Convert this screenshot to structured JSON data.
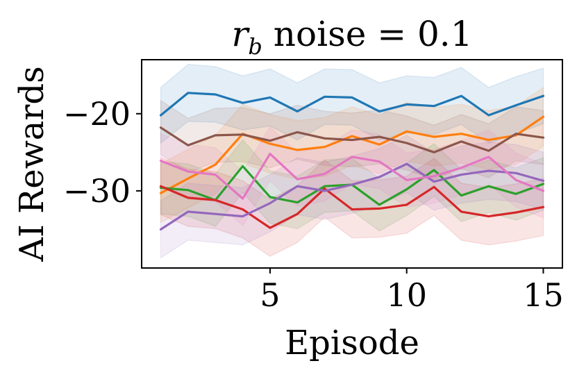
{
  "chart_data": {
    "type": "line",
    "title": {
      "variable": "r",
      "subscript": "b",
      "text": " noise = 0.1"
    },
    "xlabel": "Episode",
    "ylabel": "AI Rewards",
    "xlim": [
      0.3,
      15.7
    ],
    "ylim": [
      -40,
      -13
    ],
    "xticks": [
      5,
      10,
      15
    ],
    "xtick_labels": [
      "5",
      "10",
      "15"
    ],
    "yticks": [
      -20,
      -30
    ],
    "ytick_labels": [
      "−20",
      "−30"
    ],
    "x": [
      1,
      2,
      3,
      4,
      5,
      6,
      7,
      8,
      9,
      10,
      11,
      12,
      13,
      14,
      15
    ],
    "band_opacity": 0.12,
    "series": [
      {
        "name": "series-blue",
        "color": "#1f77b4",
        "values": [
          -20.2,
          -17.3,
          -17.5,
          -18.6,
          -17.9,
          -19.7,
          -17.8,
          -17.9,
          -19.7,
          -18.8,
          -19.0,
          -17.7,
          -20.2,
          -18.9,
          -17.7
        ],
        "upper": [
          -16.6,
          -13.6,
          -13.9,
          -15.1,
          -14.2,
          -16.0,
          -14.2,
          -14.3,
          -16.0,
          -15.1,
          -15.3,
          -14.0,
          -16.6,
          -15.2,
          -14.1
        ],
        "lower": [
          -23.8,
          -21.0,
          -21.1,
          -22.1,
          -21.6,
          -23.4,
          -21.4,
          -21.5,
          -23.4,
          -22.5,
          -22.7,
          -21.4,
          -23.8,
          -22.6,
          -21.3
        ]
      },
      {
        "name": "series-orange",
        "color": "#ff7f0e",
        "values": [
          -30.3,
          -28.4,
          -26.6,
          -22.6,
          -23.9,
          -24.7,
          -24.3,
          -22.9,
          -24.0,
          -22.3,
          -23.0,
          -22.6,
          -23.4,
          -22.8,
          -20.4
        ],
        "upper": [
          -26.5,
          -24.6,
          -22.8,
          -18.8,
          -20.1,
          -20.9,
          -20.5,
          -19.1,
          -20.2,
          -18.5,
          -19.2,
          -18.8,
          -19.6,
          -19.0,
          -16.6
        ],
        "lower": [
          -34.1,
          -32.2,
          -30.4,
          -26.4,
          -27.7,
          -28.5,
          -28.1,
          -26.7,
          -27.8,
          -26.1,
          -26.8,
          -26.4,
          -27.2,
          -26.6,
          -24.2
        ]
      },
      {
        "name": "series-green",
        "color": "#2ca02c",
        "values": [
          -29.6,
          -29.9,
          -31.2,
          -26.8,
          -30.8,
          -31.5,
          -29.4,
          -29.2,
          -31.8,
          -29.8,
          -27.3,
          -30.6,
          -29.4,
          -30.4,
          -29.1
        ],
        "upper": [
          -26.2,
          -26.5,
          -27.8,
          -23.4,
          -27.4,
          -28.1,
          -26.0,
          -25.8,
          -28.4,
          -26.4,
          -23.9,
          -27.2,
          -26.0,
          -27.0,
          -25.7
        ],
        "lower": [
          -33.0,
          -33.3,
          -34.6,
          -30.2,
          -34.2,
          -34.9,
          -32.8,
          -32.6,
          -35.2,
          -33.2,
          -30.7,
          -34.0,
          -32.8,
          -33.8,
          -32.5
        ]
      },
      {
        "name": "series-red",
        "color": "#d62728",
        "values": [
          -29.4,
          -30.9,
          -31.2,
          -32.4,
          -34.8,
          -33.0,
          -29.7,
          -32.4,
          -32.3,
          -31.8,
          -29.5,
          -32.7,
          -33.3,
          -32.8,
          -32.1
        ],
        "upper": [
          -25.7,
          -27.2,
          -27.5,
          -28.7,
          -31.1,
          -29.3,
          -26.0,
          -28.7,
          -28.6,
          -28.1,
          -25.8,
          -29.0,
          -29.6,
          -29.1,
          -28.4
        ],
        "lower": [
          -33.1,
          -34.6,
          -34.9,
          -36.1,
          -38.5,
          -36.7,
          -33.4,
          -36.1,
          -36.0,
          -35.5,
          -33.2,
          -36.4,
          -37.0,
          -36.5,
          -35.8
        ]
      },
      {
        "name": "series-purple",
        "color": "#9467bd",
        "values": [
          -35.0,
          -32.7,
          -33.0,
          -33.3,
          -31.6,
          -29.4,
          -30.0,
          -29.2,
          -28.2,
          -26.5,
          -28.8,
          -27.9,
          -27.4,
          -27.7,
          -28.7
        ],
        "upper": [
          -31.3,
          -29.0,
          -29.3,
          -29.6,
          -27.9,
          -25.7,
          -26.3,
          -25.5,
          -24.5,
          -22.8,
          -25.1,
          -24.2,
          -23.7,
          -24.0,
          -25.0
        ],
        "lower": [
          -38.7,
          -36.4,
          -36.7,
          -37.0,
          -35.3,
          -33.1,
          -33.7,
          -32.9,
          -31.9,
          -30.2,
          -32.5,
          -31.6,
          -31.1,
          -31.4,
          -32.4
        ]
      },
      {
        "name": "series-brown",
        "color": "#8c564b",
        "values": [
          -21.8,
          -24.1,
          -22.8,
          -22.7,
          -23.5,
          -22.4,
          -23.2,
          -23.4,
          -23.0,
          -23.8,
          -25.0,
          -23.6,
          -24.8,
          -22.6,
          -23.1
        ],
        "upper": [
          -18.3,
          -20.6,
          -19.3,
          -19.2,
          -20.0,
          -18.9,
          -19.7,
          -19.9,
          -19.5,
          -20.3,
          -21.5,
          -20.1,
          -21.3,
          -19.1,
          -19.6
        ],
        "lower": [
          -25.3,
          -27.6,
          -26.3,
          -26.2,
          -27.0,
          -25.9,
          -26.7,
          -26.9,
          -26.5,
          -27.3,
          -28.5,
          -27.1,
          -28.3,
          -26.1,
          -26.6
        ]
      },
      {
        "name": "series-pink",
        "color": "#e377c2",
        "values": [
          -26.1,
          -27.5,
          -27.9,
          -31.0,
          -25.2,
          -28.5,
          -27.8,
          -25.6,
          -26.2,
          -28.6,
          -28.1,
          -27.0,
          -25.6,
          -28.6,
          -30.0
        ],
        "upper": [
          -22.6,
          -24.0,
          -24.4,
          -27.5,
          -21.7,
          -25.0,
          -24.3,
          -22.1,
          -22.7,
          -25.1,
          -24.6,
          -23.5,
          -22.1,
          -25.1,
          -26.5
        ],
        "lower": [
          -29.6,
          -31.0,
          -31.4,
          -34.5,
          -28.7,
          -32.0,
          -31.3,
          -29.1,
          -29.7,
          -32.1,
          -31.6,
          -30.5,
          -29.1,
          -32.1,
          -33.5
        ]
      }
    ]
  }
}
